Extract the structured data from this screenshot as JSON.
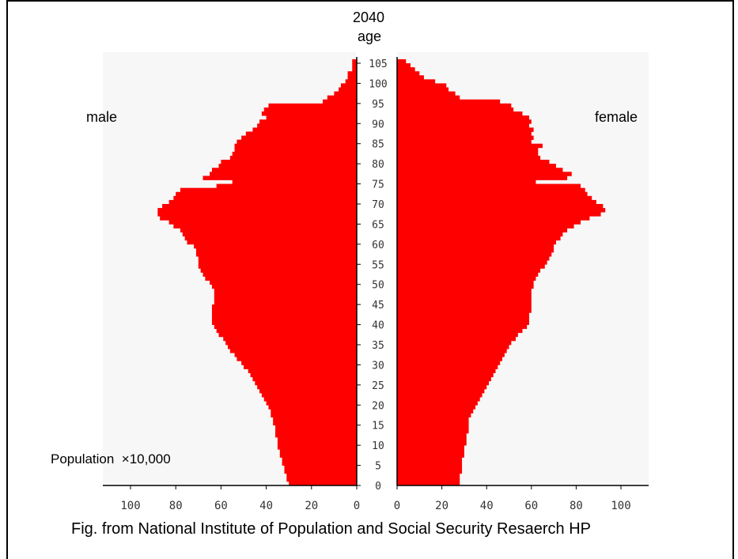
{
  "year_label": "2040",
  "age_label": "age",
  "male_label": "male",
  "female_label": "female",
  "unit_label": "Population  ×10,000",
  "caption": "Fig. from National Institute of Population and Social Security Resaerch HP",
  "colors": {
    "bar": "#ff0000",
    "plot_bg": "#f7f7f7",
    "axis": "#000000",
    "tick_text": "#333333"
  },
  "chart_data": {
    "type": "bar",
    "orientation": "horizontal-population-pyramid",
    "age_ticks": [
      0,
      5,
      10,
      15,
      20,
      25,
      30,
      35,
      40,
      45,
      50,
      55,
      60,
      65,
      70,
      75,
      80,
      85,
      90,
      95,
      100,
      105
    ],
    "x_ticks_male": [
      100,
      80,
      60,
      40,
      20,
      0
    ],
    "x_ticks_female": [
      0,
      20,
      40,
      60,
      80,
      100
    ],
    "xlim": [
      0,
      110
    ],
    "ylim": [
      0,
      106
    ],
    "ages": [
      0,
      1,
      2,
      3,
      4,
      5,
      6,
      7,
      8,
      9,
      10,
      11,
      12,
      13,
      14,
      15,
      16,
      17,
      18,
      19,
      20,
      21,
      22,
      23,
      24,
      25,
      26,
      27,
      28,
      29,
      30,
      31,
      32,
      33,
      34,
      35,
      36,
      37,
      38,
      39,
      40,
      41,
      42,
      43,
      44,
      45,
      46,
      47,
      48,
      49,
      50,
      51,
      52,
      53,
      54,
      55,
      56,
      57,
      58,
      59,
      60,
      61,
      62,
      63,
      64,
      65,
      66,
      67,
      68,
      69,
      70,
      71,
      72,
      73,
      74,
      75,
      76,
      77,
      78,
      79,
      80,
      81,
      82,
      83,
      84,
      85,
      86,
      87,
      88,
      89,
      90,
      91,
      92,
      93,
      94,
      95,
      96,
      97,
      98,
      99,
      100,
      101,
      102,
      103,
      104,
      105
    ],
    "series": [
      {
        "name": "male",
        "values": [
          30,
          31,
          31,
          32,
          32,
          33,
          33,
          34,
          34,
          35,
          35,
          35,
          36,
          36,
          36,
          37,
          37,
          38,
          38,
          39,
          40,
          41,
          42,
          43,
          44,
          45,
          46,
          47,
          48,
          50,
          51,
          53,
          54,
          56,
          57,
          58,
          59,
          61,
          62,
          63,
          64,
          64,
          64,
          64,
          64,
          63,
          63,
          63,
          63,
          64,
          65,
          67,
          68,
          69,
          70,
          70,
          70,
          71,
          71,
          72,
          75,
          76,
          77,
          78,
          81,
          83,
          87,
          88,
          88,
          86,
          83,
          81,
          80,
          78,
          62,
          55,
          68,
          65,
          64,
          61,
          60,
          56,
          55,
          54,
          54,
          53,
          51,
          49,
          46,
          44,
          43,
          40,
          42,
          41,
          39,
          15,
          13,
          10,
          8,
          7,
          5,
          4,
          4,
          2,
          2,
          2
        ]
      },
      {
        "name": "female",
        "values": [
          28,
          28,
          28,
          29,
          29,
          29,
          29,
          30,
          30,
          30,
          31,
          31,
          31,
          32,
          32,
          32,
          32,
          33,
          34,
          35,
          36,
          37,
          38,
          39,
          40,
          41,
          42,
          43,
          44,
          45,
          46,
          47,
          48,
          49,
          50,
          51,
          53,
          54,
          56,
          58,
          59,
          59,
          59,
          60,
          60,
          60,
          60,
          60,
          60,
          61,
          61,
          62,
          63,
          64,
          66,
          67,
          68,
          69,
          70,
          70,
          71,
          73,
          74,
          76,
          79,
          82,
          86,
          91,
          93,
          92,
          89,
          87,
          85,
          84,
          82,
          62,
          76,
          78,
          74,
          71,
          68,
          64,
          63,
          63,
          65,
          60,
          61,
          60,
          61,
          59,
          60,
          59,
          56,
          52,
          51,
          46,
          28,
          26,
          23,
          22,
          17,
          12,
          10,
          8,
          6,
          4
        ]
      }
    ]
  }
}
